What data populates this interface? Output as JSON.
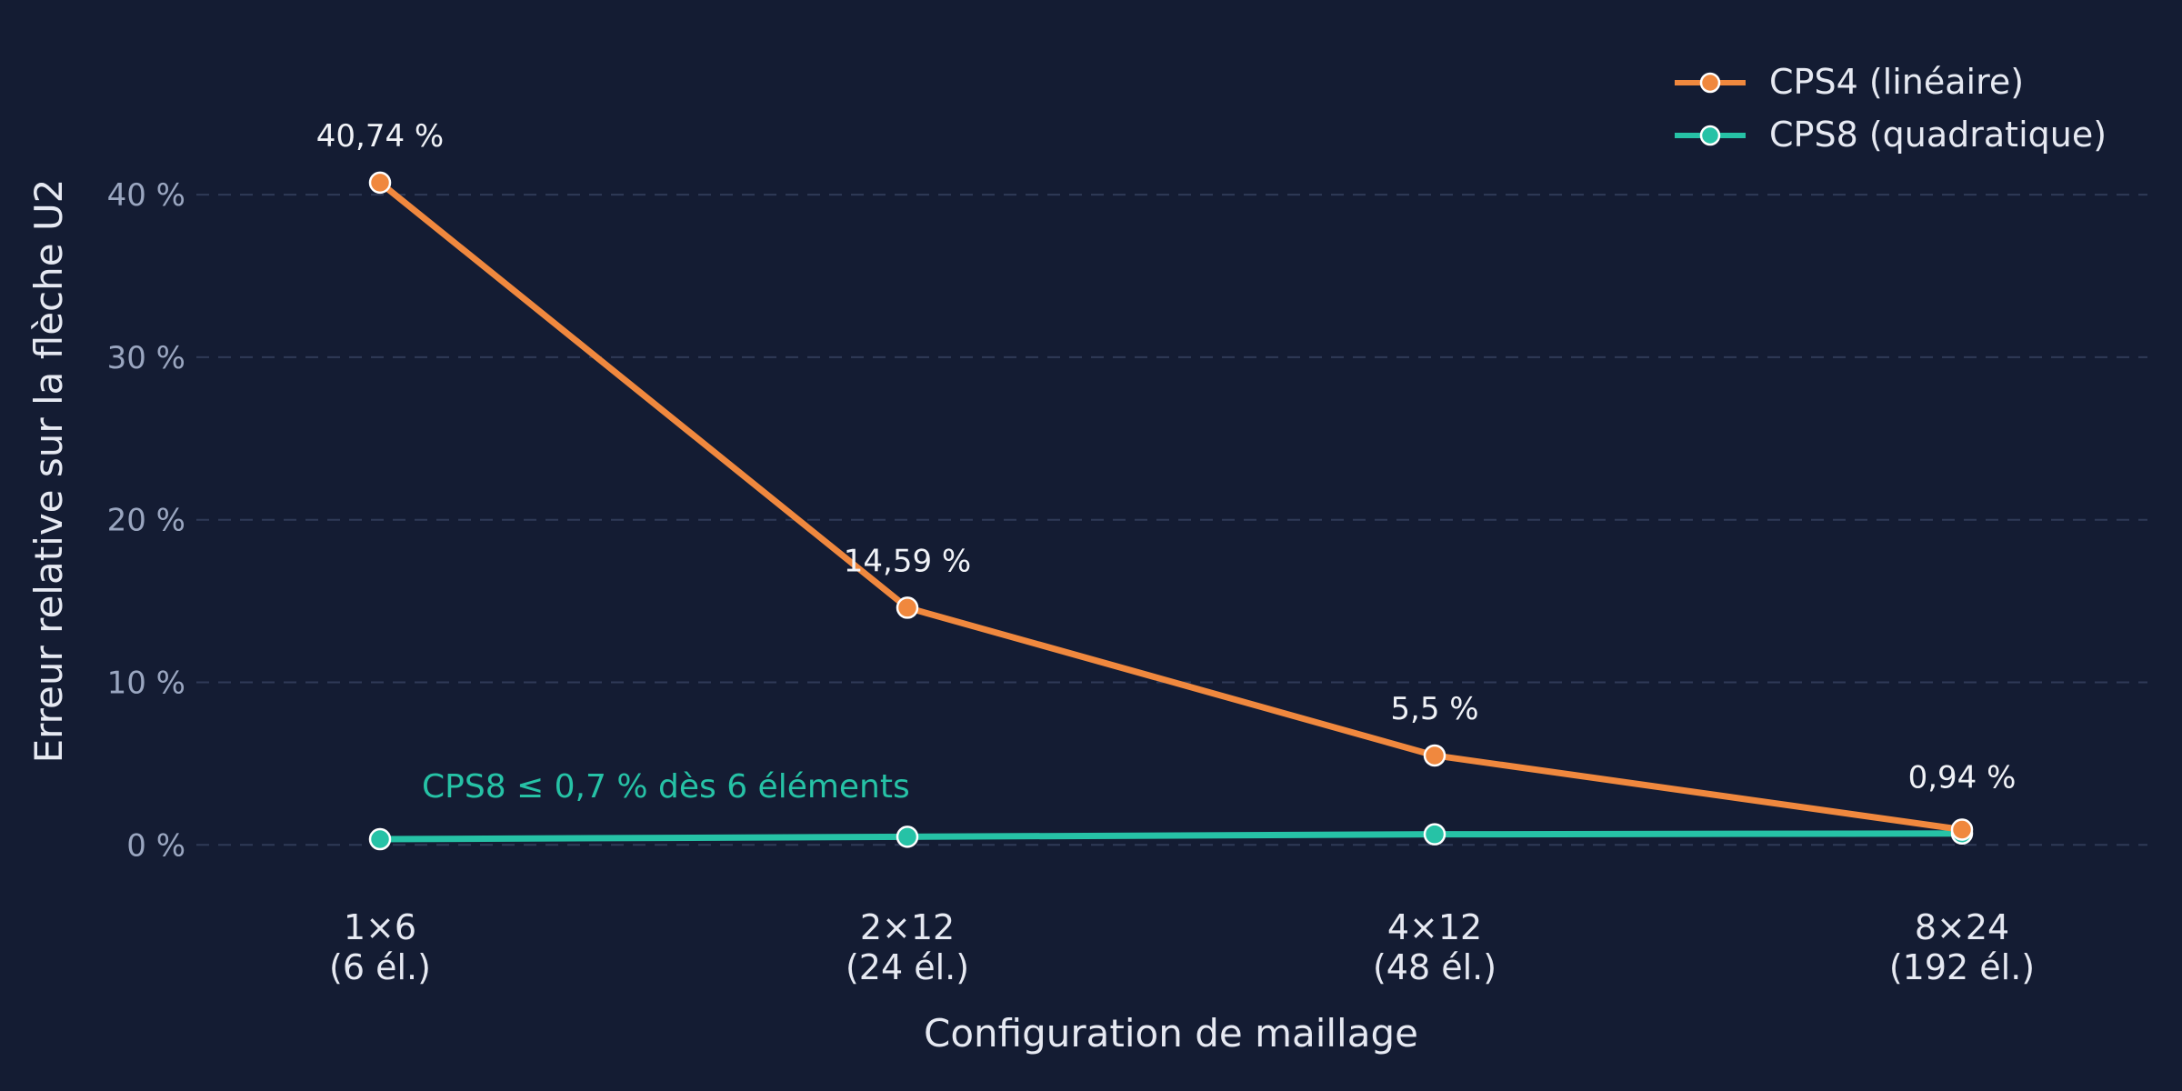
{
  "colors": {
    "background": "#141c33",
    "grid": "#2f3a57",
    "series_cps4": "#f0883e",
    "series_cps8": "#26c2a6",
    "tick_y": "#9aa6c0",
    "text": "#e6e9f2"
  },
  "chart_data": {
    "type": "line",
    "title": "",
    "xlabel": "Configuration de maillage",
    "ylabel": "Erreur relative sur la flèche U2",
    "categories": [
      [
        "1×6",
        "(6 él.)"
      ],
      [
        "2×12",
        "(24 él.)"
      ],
      [
        "4×12",
        "(48 él.)"
      ],
      [
        "8×24",
        "(192 él.)"
      ]
    ],
    "ylim": [
      -2.5,
      47.5
    ],
    "y_ticks": [
      0,
      10,
      20,
      30,
      40
    ],
    "y_tick_labels": [
      "0 %",
      "10 %",
      "20 %",
      "30 %",
      "40 %"
    ],
    "grid": true,
    "legend_position": "top-right",
    "series": [
      {
        "name": "CPS4 (linéaire)",
        "color": "#f0883e",
        "values": [
          40.74,
          14.59,
          5.5,
          0.94
        ],
        "data_labels": [
          "40,74 %",
          "14,59 %",
          "5,5 %",
          "0,94 %"
        ]
      },
      {
        "name": "CPS8 (quadratique)",
        "color": "#26c2a6",
        "values": [
          0.35,
          0.5,
          0.65,
          0.7
        ]
      }
    ],
    "annotations": [
      {
        "text": "CPS8 ≤ 0,7 % dès 6 éléments",
        "color": "#26c2a6"
      }
    ]
  }
}
